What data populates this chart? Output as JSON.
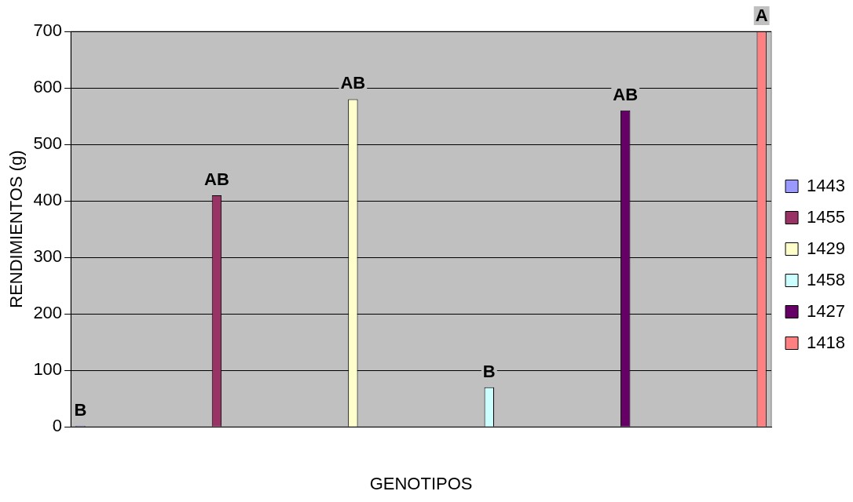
{
  "chart_data": {
    "type": "bar",
    "xlabel": "GENOTIPOS",
    "ylabel": "RENDIMIENTOS (g)",
    "categories": [
      null,
      null,
      null,
      null,
      null,
      null
    ],
    "series": [
      {
        "name": "1443",
        "color": "#9999ff",
        "values": [
          2,
          null,
          null,
          null,
          null,
          null
        ],
        "value_labels": [
          "B",
          null,
          null,
          null,
          null,
          null
        ]
      },
      {
        "name": "1455",
        "color": "#993366",
        "values": [
          null,
          410,
          null,
          null,
          null,
          null
        ],
        "value_labels": [
          null,
          "AB",
          null,
          null,
          null,
          null
        ]
      },
      {
        "name": "1429",
        "color": "#ffffcc",
        "values": [
          null,
          null,
          580,
          null,
          null,
          null
        ],
        "value_labels": [
          null,
          null,
          "AB",
          null,
          null,
          null
        ]
      },
      {
        "name": "1458",
        "color": "#ccffff",
        "values": [
          null,
          null,
          null,
          70,
          null,
          null
        ],
        "value_labels": [
          null,
          null,
          null,
          "B",
          null,
          null
        ]
      },
      {
        "name": "1427",
        "color": "#660066",
        "values": [
          null,
          null,
          null,
          null,
          560,
          null
        ],
        "value_labels": [
          null,
          null,
          null,
          null,
          "AB",
          null
        ]
      },
      {
        "name": "1418",
        "color": "#ff8080",
        "values": [
          null,
          null,
          null,
          null,
          null,
          700
        ],
        "value_labels": [
          null,
          null,
          null,
          null,
          null,
          "A"
        ]
      }
    ],
    "ylim": [
      0,
      700
    ],
    "yticks": [
      0,
      100,
      200,
      300,
      400,
      500,
      600,
      700
    ],
    "grid": "y",
    "legend": "right"
  }
}
